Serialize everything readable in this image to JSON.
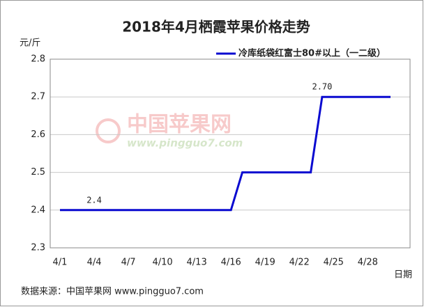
{
  "chart_data": {
    "type": "line",
    "title": "2018年4月栖霞苹果价格走势",
    "y_label": "元/斤",
    "x_label": "日期",
    "categories": [
      "4/1",
      null,
      null,
      "4/4",
      null,
      null,
      "4/7",
      null,
      null,
      "4/10",
      null,
      null,
      "4/13",
      null,
      null,
      "4/16",
      null,
      null,
      "4/19",
      null,
      null,
      "4/22",
      null,
      null,
      "4/25",
      null,
      null,
      "4/28",
      null,
      null
    ],
    "series": [
      {
        "name": "冷库纸袋红富士80#以上（一二级）",
        "color": "#0a0ad0",
        "values": [
          2.4,
          2.4,
          2.4,
          2.4,
          2.4,
          2.4,
          2.4,
          2.4,
          2.4,
          2.4,
          2.4,
          2.4,
          2.4,
          2.4,
          2.4,
          2.4,
          2.5,
          2.5,
          2.5,
          2.5,
          2.5,
          2.5,
          2.5,
          2.7,
          2.7,
          2.7,
          2.7,
          2.7,
          2.7,
          2.7
        ],
        "value_labels": [
          null,
          null,
          null,
          "2.4",
          null,
          null,
          null,
          null,
          null,
          null,
          null,
          null,
          null,
          null,
          null,
          null,
          null,
          null,
          null,
          null,
          null,
          null,
          null,
          "2.70",
          null,
          null,
          null,
          null,
          null,
          null
        ]
      }
    ],
    "ylim": [
      2.3,
      2.8
    ],
    "yticks": [
      2.3,
      2.4,
      2.5,
      2.6,
      2.7,
      2.8
    ],
    "grid": true,
    "legend": "top-right"
  },
  "watermark": {
    "name": "中国苹果网",
    "url": "www.pingguo7.com"
  },
  "source": "数据来源：中国苹果网 www.pingguo7.com"
}
